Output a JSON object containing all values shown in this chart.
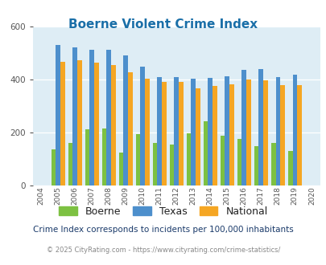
{
  "title": "Boerne Violent Crime Index",
  "years": [
    2004,
    2005,
    2006,
    2007,
    2008,
    2009,
    2010,
    2011,
    2012,
    2013,
    2014,
    2015,
    2016,
    2017,
    2018,
    2019,
    2020
  ],
  "boerne": [
    0,
    135,
    160,
    212,
    215,
    125,
    193,
    162,
    155,
    198,
    242,
    188,
    175,
    150,
    162,
    130,
    0
  ],
  "texas": [
    0,
    530,
    520,
    512,
    512,
    492,
    450,
    410,
    410,
    402,
    405,
    412,
    437,
    440,
    408,
    418,
    0
  ],
  "national": [
    0,
    468,
    472,
    465,
    455,
    428,
    404,
    390,
    390,
    367,
    375,
    383,
    400,
    397,
    380,
    379,
    0
  ],
  "boerne_color": "#7dc142",
  "texas_color": "#4d8fcc",
  "national_color": "#f5a623",
  "bg_color": "#deedf5",
  "ylim": [
    0,
    600
  ],
  "yticks": [
    0,
    200,
    400,
    600
  ],
  "legend_labels": [
    "Boerne",
    "Texas",
    "National"
  ],
  "footnote1": "Crime Index corresponds to incidents per 100,000 inhabitants",
  "footnote2": "© 2025 CityRating.com - https://www.cityrating.com/crime-statistics/",
  "title_color": "#1a6fa8",
  "footnote1_color": "#1a3a6a",
  "footnote2_color": "#888888",
  "bar_width": 0.27
}
